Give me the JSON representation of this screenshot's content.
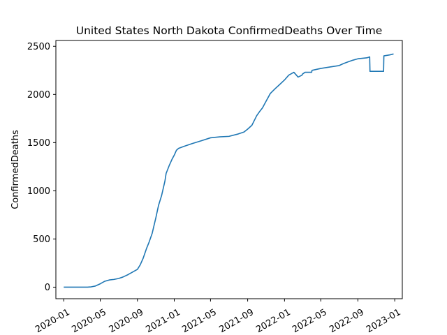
{
  "chart_data": {
    "type": "line",
    "title": "United States North Dakota ConfirmedDeaths Over Time",
    "xlabel": "",
    "ylabel": "ConfirmedDeaths",
    "x_ticks": [
      "2020-01",
      "2020-05",
      "2020-09",
      "2021-01",
      "2021-05",
      "2021-09",
      "2022-01",
      "2022-05",
      "2022-09",
      "2023-01"
    ],
    "y_ticks": [
      0,
      500,
      1000,
      1500,
      2000,
      2500
    ],
    "xlim": [
      "2019-12-06",
      "2023-01-26"
    ],
    "ylim": [
      -120,
      2560
    ],
    "grid": false,
    "legend": "none",
    "line_color": "#1f77b4",
    "series": [
      {
        "x": [
          "2020-01-01",
          "2020-02-01",
          "2020-03-01",
          "2020-03-20",
          "2020-04-01",
          "2020-04-15",
          "2020-05-01",
          "2020-05-15",
          "2020-06-01",
          "2020-06-15",
          "2020-07-01",
          "2020-07-15",
          "2020-08-01",
          "2020-08-15",
          "2020-09-01",
          "2020-09-10",
          "2020-09-20",
          "2020-10-01",
          "2020-10-10",
          "2020-10-20",
          "2020-11-01",
          "2020-11-10",
          "2020-11-20",
          "2020-12-01",
          "2020-12-05",
          "2020-12-15",
          "2020-12-25",
          "2021-01-01",
          "2021-01-08",
          "2021-01-15",
          "2021-02-01",
          "2021-03-01",
          "2021-04-01",
          "2021-05-01",
          "2021-06-01",
          "2021-07-01",
          "2021-08-01",
          "2021-08-20",
          "2021-09-01",
          "2021-09-15",
          "2021-10-01",
          "2021-10-10",
          "2021-10-20",
          "2021-11-01",
          "2021-11-15",
          "2021-12-01",
          "2021-12-15",
          "2022-01-01",
          "2022-01-15",
          "2022-02-01",
          "2022-02-15",
          "2022-02-28",
          "2022-03-01",
          "2022-03-10",
          "2022-04-01",
          "2022-04-02",
          "2022-05-01",
          "2022-06-01",
          "2022-07-01",
          "2022-07-15",
          "2022-08-01",
          "2022-08-15",
          "2022-09-01",
          "2022-09-15",
          "2022-10-01",
          "2022-10-10",
          "2022-10-11",
          "2022-11-25",
          "2022-11-26",
          "2022-12-15",
          "2022-12-28"
        ],
        "y": [
          0,
          0,
          0,
          0,
          3,
          12,
          35,
          60,
          75,
          80,
          90,
          105,
          130,
          155,
          185,
          230,
          300,
          400,
          470,
          560,
          720,
          850,
          950,
          1100,
          1180,
          1260,
          1330,
          1370,
          1420,
          1440,
          1460,
          1490,
          1520,
          1550,
          1560,
          1565,
          1590,
          1610,
          1640,
          1680,
          1780,
          1820,
          1860,
          1930,
          2010,
          2060,
          2100,
          2150,
          2200,
          2230,
          2180,
          2200,
          2210,
          2230,
          2230,
          2250,
          2270,
          2285,
          2300,
          2320,
          2340,
          2355,
          2370,
          2375,
          2380,
          2390,
          2240,
          2240,
          2400,
          2410,
          2420
        ]
      }
    ]
  }
}
